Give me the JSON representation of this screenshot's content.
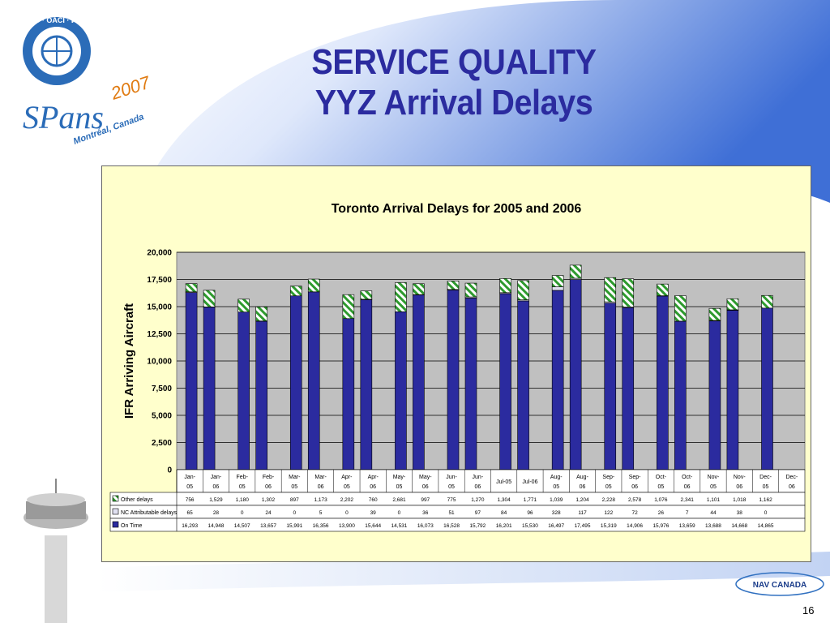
{
  "slide": {
    "title_line1": "SERVICE QUALITY",
    "title_line2": "YYZ Arrival Delays",
    "page_number": "16",
    "logo_text": "ICAO · OACI · ИКАО",
    "event_text": "SPans 2007",
    "event_location": "Montréal, Canada",
    "footer_logo": "NAV CANADA"
  },
  "colors": {
    "on_time": "#2b2b9f",
    "nc_attributable": "#e0e0f0",
    "other_delays": "#2e9a2e",
    "plot_bg": "#c0c0c0",
    "chart_bg": "#ffffcc",
    "title_color": "#2b2b9f"
  },
  "chart_data": {
    "type": "bar",
    "stacked": true,
    "title": "Toronto Arrival Delays for 2005 and 2006",
    "ylabel": "IFR Arriving Aircraft",
    "ylim": [
      0,
      20000
    ],
    "yticks": [
      "0",
      "2,500",
      "5,000",
      "7,500",
      "10,000",
      "12,500",
      "15,000",
      "17,500",
      "20,000"
    ],
    "categories": [
      [
        "Jan-",
        "05"
      ],
      [
        "Jan-",
        "06"
      ],
      [
        "Feb-",
        "05"
      ],
      [
        "Feb-",
        "06"
      ],
      [
        "Mar-",
        "05"
      ],
      [
        "Mar-",
        "06"
      ],
      [
        "Apr-",
        "05"
      ],
      [
        "Apr-",
        "06"
      ],
      [
        "May-",
        "05"
      ],
      [
        "May-",
        "06"
      ],
      [
        "Jun-",
        "05"
      ],
      [
        "Jun-",
        "06"
      ],
      [
        "Jul-05",
        ""
      ],
      [
        "Jul-06",
        ""
      ],
      [
        "Aug-",
        "05"
      ],
      [
        "Aug-",
        "06"
      ],
      [
        "Sep-",
        "05"
      ],
      [
        "Sep-",
        "06"
      ],
      [
        "Oct-",
        "05"
      ],
      [
        "Oct-",
        "06"
      ],
      [
        "Nov-",
        "05"
      ],
      [
        "Nov-",
        "06"
      ],
      [
        "Dec-",
        "05"
      ],
      [
        "Dec-",
        "06"
      ]
    ],
    "series": [
      {
        "name": "On Time",
        "values": [
          16293,
          14948,
          14507,
          13657,
          15991,
          16356,
          13900,
          15644,
          14531,
          16073,
          16528,
          15792,
          16201,
          15530,
          16497,
          17495,
          15319,
          14906,
          15976,
          13659,
          13688,
          14668,
          14865,
          null
        ],
        "labels": [
          "16,293",
          "14,948",
          "14,507",
          "13,657",
          "15,991",
          "16,356",
          "13,900",
          "15,644",
          "14,531",
          "16,073",
          "16,528",
          "15,792",
          "16,201",
          "15,530",
          "16,497",
          "17,495",
          "15,319",
          "14,906",
          "15,976",
          "13,659",
          "13,688",
          "14,668",
          "14,865",
          ""
        ]
      },
      {
        "name": "NC Attributable delays",
        "values": [
          65,
          28,
          0,
          24,
          0,
          5,
          0,
          39,
          0,
          36,
          51,
          97,
          84,
          96,
          328,
          117,
          122,
          72,
          26,
          7,
          44,
          38,
          0,
          null
        ],
        "labels": [
          "65",
          "28",
          "0",
          "24",
          "0",
          "5",
          "0",
          "39",
          "0",
          "36",
          "51",
          "97",
          "84",
          "96",
          "328",
          "117",
          "122",
          "72",
          "26",
          "7",
          "44",
          "38",
          "0",
          ""
        ]
      },
      {
        "name": "Other delays",
        "values": [
          756,
          1529,
          1180,
          1302,
          897,
          1173,
          2202,
          760,
          2681,
          997,
          775,
          1270,
          1304,
          1771,
          1039,
          1204,
          2228,
          2578,
          1076,
          2341,
          1101,
          1018,
          1162,
          null
        ],
        "labels": [
          "756",
          "1,529",
          "1,180",
          "1,302",
          "897",
          "1,173",
          "2,202",
          "760",
          "2,681",
          "997",
          "775",
          "1,270",
          "1,304",
          "1,771",
          "1,039",
          "1,204",
          "2,228",
          "2,578",
          "1,076",
          "2,341",
          "1,101",
          "1,018",
          "1,162",
          ""
        ]
      }
    ],
    "legend_placement": "data-table-rows",
    "grid": true
  }
}
